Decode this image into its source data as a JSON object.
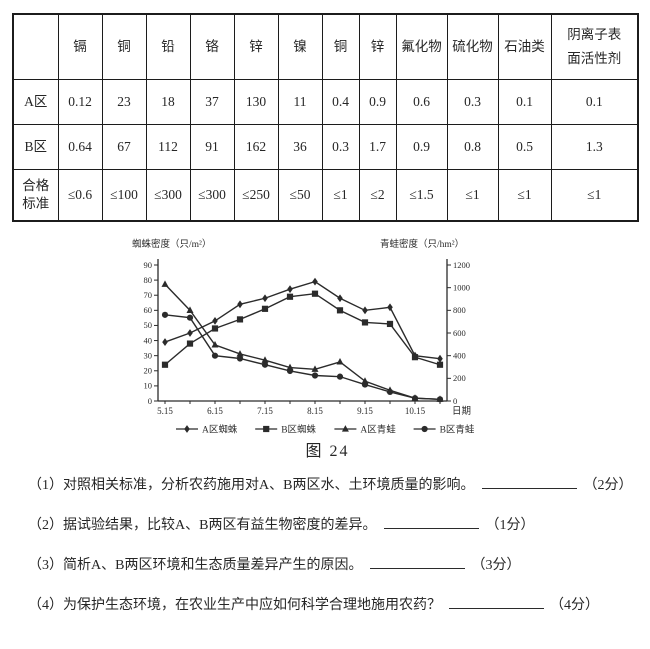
{
  "page": {
    "background": "#ffffff",
    "ink": "#2b2b2b"
  },
  "table": {
    "corner_label": "",
    "columns": [
      [
        "镉"
      ],
      [
        "铜"
      ],
      [
        "铅"
      ],
      [
        "铬"
      ],
      [
        "锌"
      ],
      [
        "镍"
      ],
      [
        "铜"
      ],
      [
        "锌"
      ],
      [
        "氟化物"
      ],
      [
        "硫化物"
      ],
      [
        "石油类"
      ],
      [
        "阴离子表",
        "面活性剂"
      ]
    ],
    "rows": [
      {
        "label": [
          "A区"
        ],
        "values": [
          "0.12",
          "23",
          "18",
          "37",
          "130",
          "11",
          "0.4",
          "0.9",
          "0.6",
          "0.3",
          "0.1",
          "0.1"
        ]
      },
      {
        "label": [
          "B区"
        ],
        "values": [
          "0.64",
          "67",
          "112",
          "91",
          "162",
          "36",
          "0.3",
          "1.7",
          "0.9",
          "0.8",
          "0.5",
          "1.3"
        ]
      },
      {
        "label": [
          "合格",
          "标准"
        ],
        "values": [
          "≤0.6",
          "≤100",
          "≤300",
          "≤300",
          "≤250",
          "≤50",
          "≤1",
          "≤2",
          "≤1.5",
          "≤1",
          "≤1",
          "≤1"
        ]
      }
    ]
  },
  "chart_data": {
    "type": "line",
    "title": "图 24",
    "x_axis_label": "日期",
    "x_points": 12,
    "x_tick_labels": [
      "5.15",
      "6.15",
      "7.15",
      "8.15",
      "9.15",
      "10.15"
    ],
    "x_label_indices": [
      0,
      2,
      4,
      6,
      8,
      10
    ],
    "left_axis": {
      "title": "蜘蛛密度（只/m²）",
      "min": 0,
      "max": 90,
      "step": 10
    },
    "right_axis": {
      "title": "青蛙密度（只/hm²）",
      "min": 0,
      "max": 1200,
      "step": 200
    },
    "grid": false,
    "legend_position": "bottom",
    "series": [
      {
        "name": "A区蜘蛛",
        "marker": "diamond",
        "axis": "left",
        "values": [
          39,
          45,
          53,
          64,
          68,
          74,
          79,
          68,
          60,
          62,
          30,
          28
        ]
      },
      {
        "name": "B区蜘蛛",
        "marker": "square",
        "axis": "left",
        "values": [
          24,
          38,
          48,
          54,
          61,
          69,
          71,
          60,
          52,
          51,
          29,
          24
        ]
      },
      {
        "name": "A区青蛙",
        "marker": "triangle",
        "axis": "right",
        "values": [
          1030,
          800,
          495,
          415,
          360,
          295,
          280,
          345,
          175,
          95,
          25,
          15
        ]
      },
      {
        "name": "B区青蛙",
        "marker": "circle",
        "axis": "right",
        "values": [
          760,
          735,
          400,
          375,
          320,
          265,
          225,
          215,
          145,
          80,
          25,
          15
        ]
      }
    ]
  },
  "questions": [
    {
      "text": "（1）对照相关标准，分析农药施用对A、B两区水、土环境质量的影响。",
      "score": "（2分）"
    },
    {
      "text": "（2）据试验结果，比较A、B两区有益生物密度的差异。",
      "score": "（1分）"
    },
    {
      "text": "（3）简析A、B两区环境和生态质量差异产生的原因。",
      "score": "（3分）"
    },
    {
      "text": "（4）为保护生态环境，在农业生产中应如何科学合理地施用农药？",
      "score": "（4分）"
    }
  ]
}
